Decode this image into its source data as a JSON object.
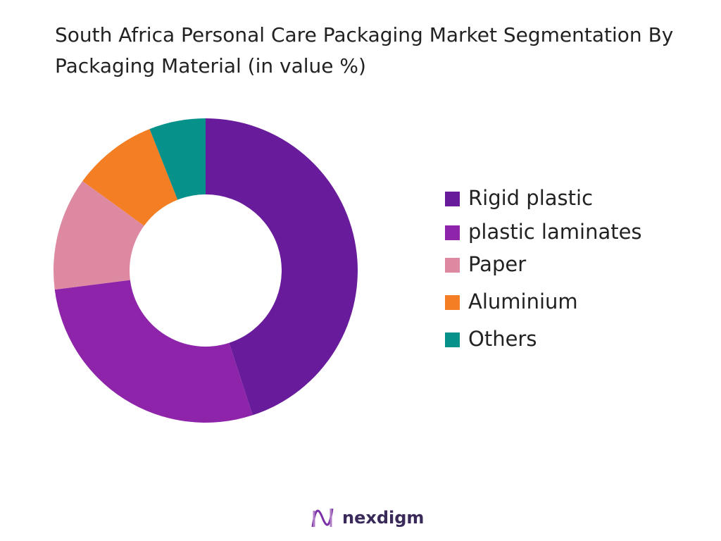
{
  "chart_data": {
    "type": "donut",
    "title": "South Africa Personal Care Packaging Market Segmentation By Packaging Material (in value %)",
    "categories": [
      "Rigid plastic",
      "plastic laminates",
      "Paper",
      "Aluminium",
      "Others"
    ],
    "values": [
      45,
      28,
      12,
      9,
      6
    ],
    "colors": [
      "#681b9a",
      "#8e24aa",
      "#de89a2",
      "#f47e23",
      "#06918a"
    ],
    "legend": "right"
  },
  "brand": "nexdigm"
}
